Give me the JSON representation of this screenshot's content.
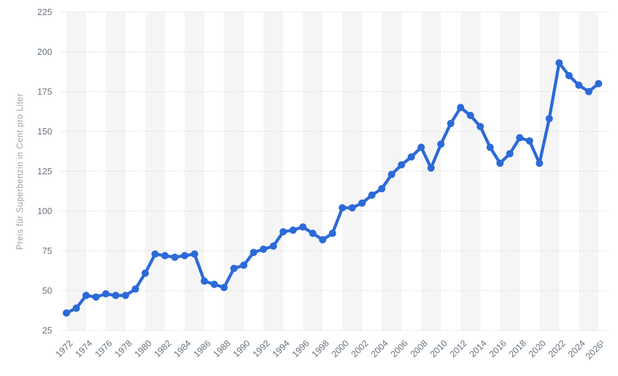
{
  "chart_data": {
    "type": "line",
    "title": "",
    "xlabel": "",
    "ylabel": "Preis für Superbenzin in Cent pro Liter",
    "series_name": "Preis für Superbenzin",
    "years": [
      1972,
      1973,
      1974,
      1975,
      1976,
      1977,
      1978,
      1979,
      1980,
      1981,
      1982,
      1983,
      1984,
      1985,
      1986,
      1987,
      1988,
      1989,
      1990,
      1991,
      1992,
      1993,
      1994,
      1995,
      1996,
      1997,
      1998,
      1999,
      2000,
      2001,
      2002,
      2003,
      2004,
      2005,
      2006,
      2007,
      2008,
      2009,
      2010,
      2011,
      2012,
      2013,
      2014,
      2015,
      2016,
      2017,
      2018,
      2019,
      2020,
      2021,
      2022,
      2023,
      2024,
      2025,
      2026
    ],
    "values": [
      36,
      39,
      47,
      46,
      48,
      47,
      47,
      51,
      61,
      73,
      72,
      71,
      72,
      73,
      56,
      54,
      52,
      64,
      66,
      74,
      76,
      78,
      87,
      88,
      90,
      86,
      82,
      86,
      102,
      102,
      105,
      110,
      114,
      123,
      129,
      134,
      140,
      127,
      142,
      155,
      165,
      160,
      153,
      140,
      130,
      136,
      146,
      144,
      130,
      158,
      193,
      185,
      179,
      175,
      180
    ],
    "ylim": [
      25,
      225
    ],
    "y_ticks": [
      25,
      50,
      75,
      100,
      125,
      150,
      175,
      200,
      225
    ],
    "x_tick_labels": [
      "1972",
      "1974",
      "1976",
      "1978",
      "1980",
      "1982",
      "1984",
      "1986",
      "1988",
      "1990",
      "1992",
      "1994",
      "1996",
      "1998",
      "2000",
      "2002",
      "2004",
      "2006",
      "2008",
      "2010",
      "2012",
      "2014",
      "2016",
      "2018",
      "2020",
      "2022",
      "2024",
      "2026¹"
    ],
    "x_tick_step_years": 2,
    "grid": "horizontal-dotted",
    "legend": "none",
    "background_stripes": "alternating-2-year-vertical-bands"
  },
  "colors": {
    "line": "#2c6ad7",
    "marker": "#2c6ad7",
    "stripe": "#f5f5f6",
    "gridline": "#d9d9d9",
    "tick_label": "#68727d",
    "axis_title": "#9aa3ad",
    "background": "#ffffff"
  }
}
